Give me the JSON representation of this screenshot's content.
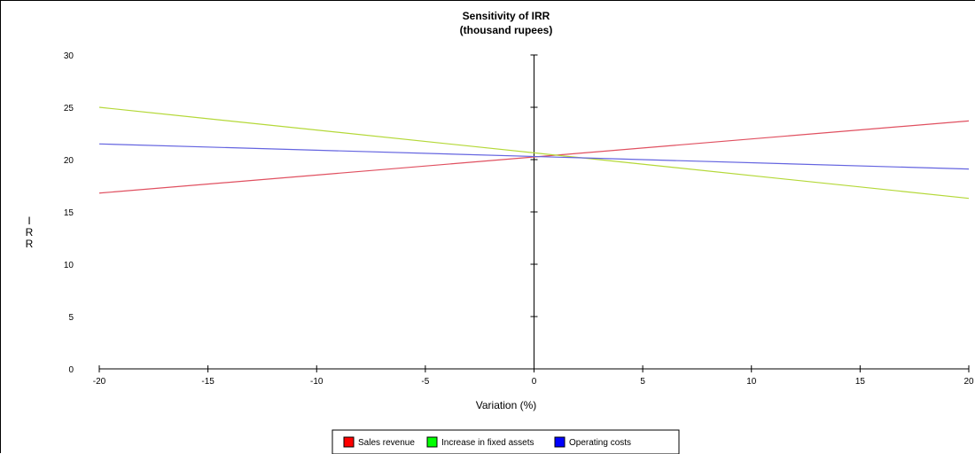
{
  "chart_data": {
    "type": "line",
    "title": "Sensitivity of IRR",
    "subtitle": "(thousand rupees)",
    "xlabel": "Variation (%)",
    "ylabel": "IRR",
    "x": [
      -20,
      20
    ],
    "xlim": [
      -20,
      20
    ],
    "ylim": [
      0,
      30
    ],
    "x_ticks": [
      -20,
      -15,
      -10,
      -5,
      0,
      5,
      10,
      15,
      20
    ],
    "y_ticks": [
      0,
      5,
      10,
      15,
      20,
      25,
      30
    ],
    "x_tick_labels": [
      "-20",
      "-15",
      "-10",
      "-5",
      "0",
      "5",
      "10",
      "15",
      "20"
    ],
    "y_tick_labels": [
      "0",
      "5",
      "10",
      "15",
      "20",
      "25",
      "30"
    ],
    "grid": false,
    "legend_position": "bottom",
    "series": [
      {
        "name": "Sales revenue",
        "values": [
          16.8,
          23.7
        ],
        "color": "#e05060",
        "legend_color": "#ff0000"
      },
      {
        "name": "Increase in fixed assets",
        "values": [
          25.0,
          16.3
        ],
        "color": "#b4d838",
        "legend_color": "#00ff00"
      },
      {
        "name": "Operating costs",
        "values": [
          21.5,
          19.1
        ],
        "color": "#6464e0",
        "legend_color": "#0000ff"
      }
    ]
  }
}
